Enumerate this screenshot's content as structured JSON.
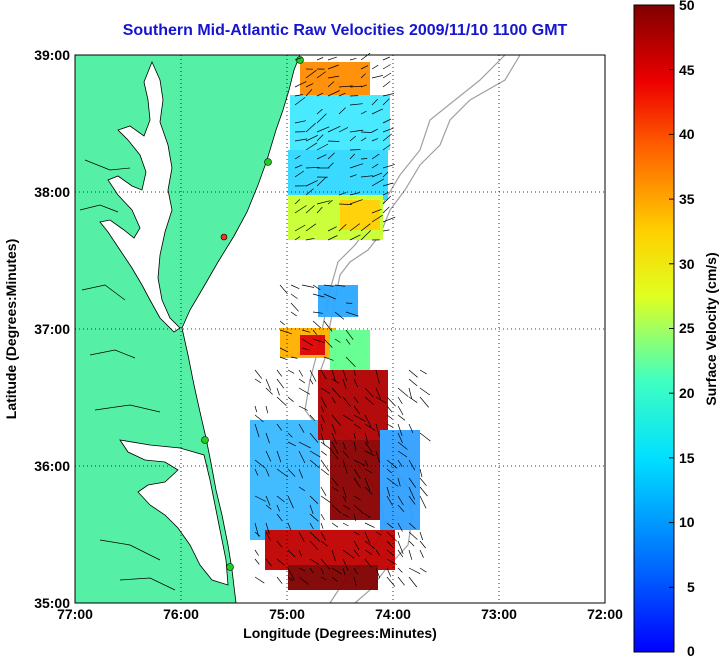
{
  "title": "Southern Mid-Atlantic Raw Velocities 2009/11/10 1100 GMT",
  "map": {
    "xlabel": "Longitude (Degrees:Minutes)",
    "ylabel": "Latitude (Degrees:Minutes)",
    "lon_ticks": [
      "77:00",
      "76:00",
      "75:00",
      "74:00",
      "73:00",
      "72:00"
    ],
    "lat_ticks": [
      "39:00",
      "38:00",
      "37:00",
      "36:00",
      "35:00"
    ],
    "lon_range": [
      -77,
      -72
    ],
    "lat_range": [
      35,
      39
    ],
    "grid": true,
    "land_color": "#55f0a5",
    "coast_color": "#000000",
    "bathymetry_color": "#a0a0a0",
    "station_color": "#22cc22"
  },
  "colorbar": {
    "label": "Surface Velocity (cm/s)",
    "ticks": [
      "50",
      "45",
      "40",
      "35",
      "30",
      "25",
      "20",
      "15",
      "10",
      "5",
      "0"
    ],
    "range": [
      0,
      50
    ],
    "colormap": "jet"
  }
}
